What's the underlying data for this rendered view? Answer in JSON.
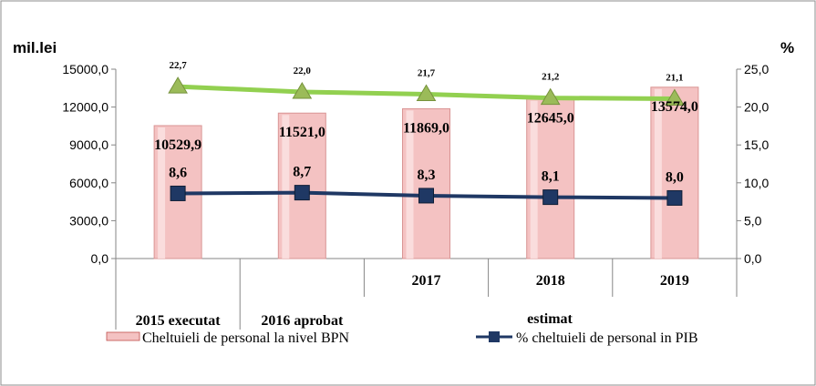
{
  "chart_data": {
    "type": "bar",
    "y_left_label": "mil.lei",
    "y_right_label": "%",
    "y_left_ticks": [
      "0,0",
      "3000,0",
      "6000,0",
      "9000,0",
      "12000,0",
      "15000,0"
    ],
    "y_right_ticks": [
      "0,0",
      "5,0",
      "10,0",
      "15,0",
      "20,0",
      "25,0"
    ],
    "ylim_left": [
      0,
      15000
    ],
    "ylim_right": [
      0,
      25
    ],
    "categories": [
      "2015 executat",
      "2016 aprobat",
      "2017",
      "2018",
      "2019"
    ],
    "category_group_label": "estimat",
    "series": [
      {
        "name": "Cheltuieli de personal la nivel BPN",
        "type": "bar",
        "axis": "left",
        "values": [
          10529.9,
          11521.0,
          11869.0,
          12645.0,
          13574.0
        ],
        "labels": [
          "10529,9",
          "11521,0",
          "11869,0",
          "12645,0",
          "13574,0"
        ],
        "color": "#f4c2c2"
      },
      {
        "name": "% cheltuieli de personal in PIB",
        "type": "line",
        "axis": "right",
        "values": [
          8.6,
          8.7,
          8.3,
          8.1,
          8.0
        ],
        "labels": [
          "8,6",
          "8,7",
          "8,3",
          "8,1",
          "8,0"
        ],
        "color": "#1f3864"
      },
      {
        "type": "line",
        "axis": "right",
        "values": [
          22.7,
          22.0,
          21.7,
          21.2,
          21.1
        ],
        "labels": [
          "22,7",
          "22,0",
          "21,7",
          "21,2",
          "21,1"
        ],
        "color": "#92d050"
      }
    ],
    "legend_position": "bottom",
    "grid": false
  }
}
